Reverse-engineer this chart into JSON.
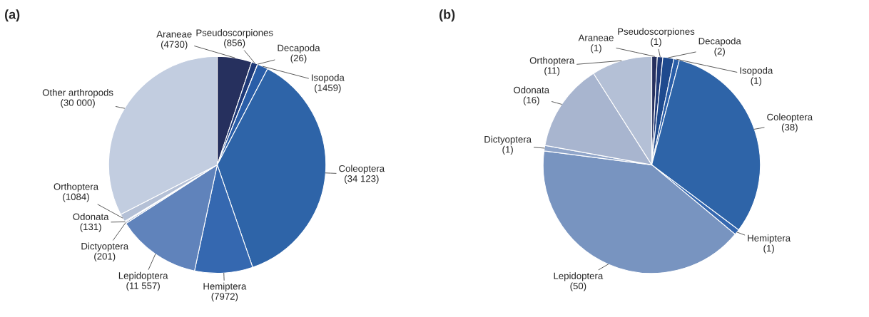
{
  "chart_data": [
    {
      "type": "pie",
      "title": "(a)",
      "categories": [
        "Araneae",
        "Pseudoscorpiones",
        "Decapoda",
        "Isopoda",
        "Coleoptera",
        "Hemiptera",
        "Lepidoptera",
        "Dictyoptera",
        "Odonata",
        "Orthoptera",
        "Other arthropods"
      ],
      "values": [
        4730,
        856,
        26,
        1459,
        34123,
        7972,
        11557,
        201,
        131,
        1084,
        30000
      ],
      "value_labels": [
        "(4730)",
        "(856)",
        "(26)",
        "(1459)",
        "(34 123)",
        "(7972)",
        "(11 557)",
        "(201)",
        "(131)",
        "(1084)",
        "(30 000)"
      ],
      "colors": [
        "#26305e",
        "#1f3a78",
        "#1e4a8e",
        "#2a5ea8",
        "#2e64a8",
        "#3568b0",
        "#6083bb",
        "#90a5c9",
        "#a8b5cf",
        "#b4c0d6",
        "#c2cde0"
      ]
    },
    {
      "type": "pie",
      "title": "(b)",
      "categories": [
        "Araneae",
        "Pseudoscorpiones",
        "Decapoda",
        "Isopoda",
        "Coleoptera",
        "Hemiptera",
        "Lepidoptera",
        "Dictyoptera",
        "Odonata",
        "Orthoptera"
      ],
      "values": [
        1,
        1,
        2,
        1,
        38,
        1,
        50,
        1,
        16,
        11
      ],
      "value_labels": [
        "(1)",
        "(1)",
        "(2)",
        "(1)",
        "(38)",
        "(1)",
        "(50)",
        "(1)",
        "(16)",
        "(11)"
      ],
      "colors": [
        "#26305e",
        "#1f3a78",
        "#1e4a8e",
        "#2a5ea8",
        "#2e64a8",
        "#3568b0",
        "#7894c0",
        "#90a5c9",
        "#a8b5cf",
        "#b4c0d6"
      ]
    }
  ]
}
